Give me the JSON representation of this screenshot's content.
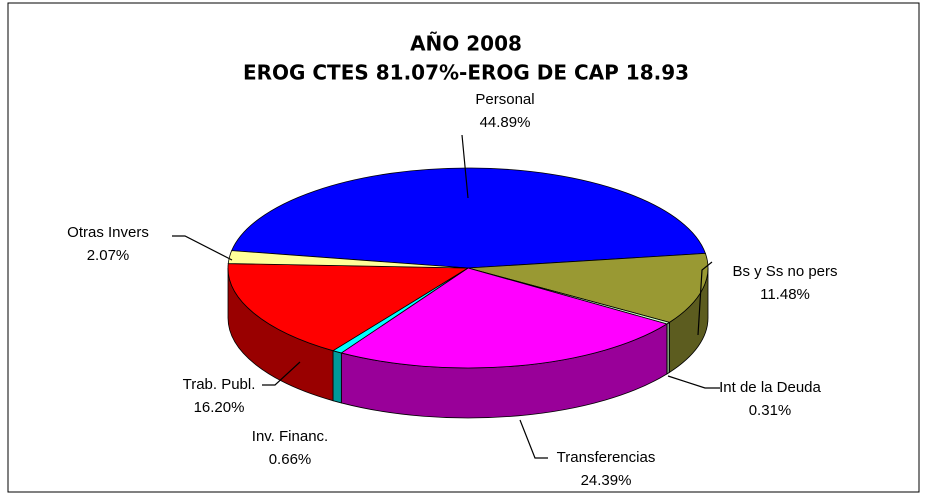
{
  "chart_data": {
    "type": "pie",
    "title": "AÑO 2008",
    "subtitle": "EROG CTES 81.07%-EROG DE CAP 18.93",
    "categories": [
      "Personal",
      "Bs y Ss no pers",
      "Int de la Deuda",
      "Transferencias",
      "Inv. Financ.",
      "Trab. Publ.",
      "Otras Invers"
    ],
    "values": [
      44.89,
      11.48,
      0.31,
      24.39,
      0.66,
      16.2,
      2.07
    ],
    "value_labels": [
      "44.89%",
      "11.48%",
      "0.31%",
      "24.39%",
      "0.66%",
      "16.20%",
      "2.07%"
    ],
    "colors": [
      "#0000ff",
      "#999933",
      "#ccffcc",
      "#ff00ff",
      "#00ffff",
      "#ff0000",
      "#ffff99"
    ]
  }
}
